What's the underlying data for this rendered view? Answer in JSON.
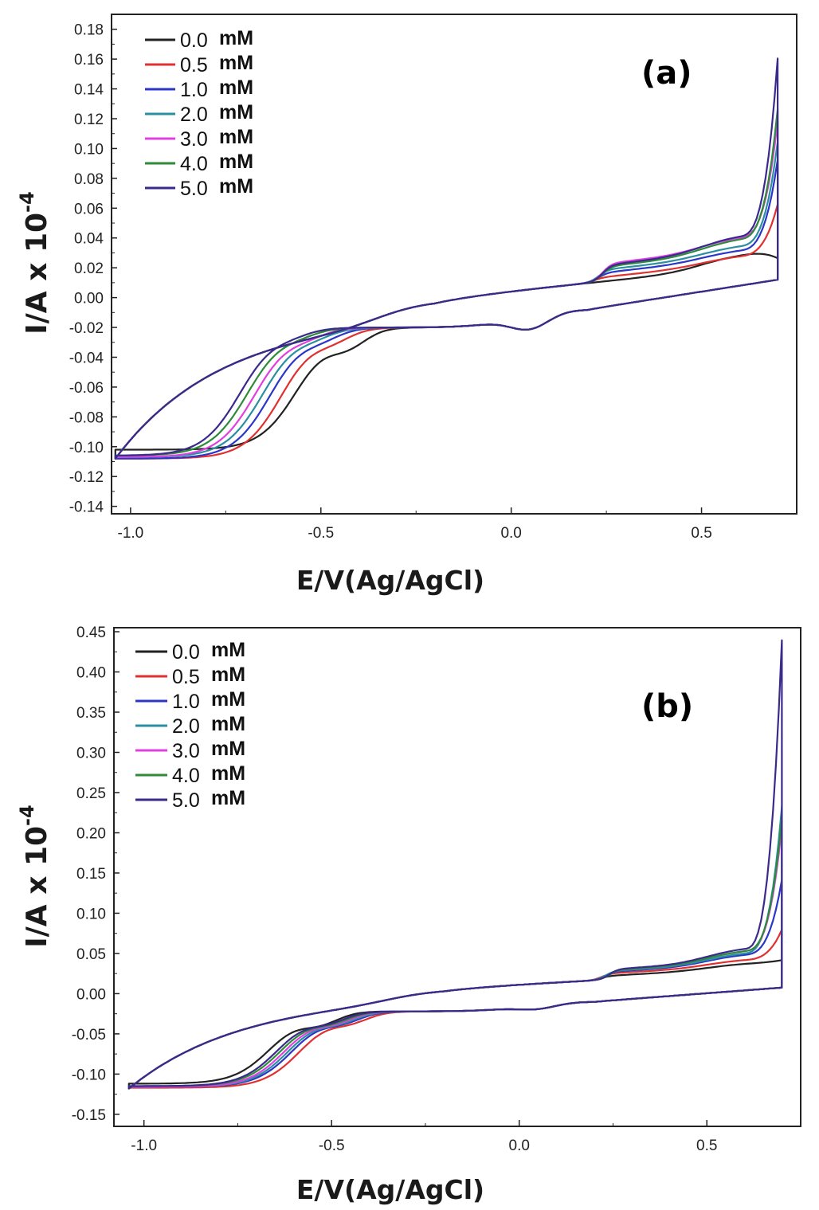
{
  "chart_data": [
    {
      "type": "line",
      "panel_label": "(a)",
      "xlabel": "E/V(Ag/AgCl)",
      "ylabel": "I/A x 10",
      "ylabel_exponent": "-4",
      "xlim": [
        -1.05,
        0.75
      ],
      "ylim": [
        -0.145,
        0.19
      ],
      "xticks": [
        -1.0,
        -0.5,
        0.0,
        0.5
      ],
      "xtick_labels": [
        "-1.0",
        "-0.5",
        "0.0",
        "0.5"
      ],
      "yticks": [
        0.18,
        0.16,
        0.14,
        0.12,
        0.1,
        0.08,
        0.06,
        0.04,
        0.02,
        0.0,
        -0.02,
        -0.04,
        -0.06,
        -0.08,
        -0.1,
        -0.12,
        -0.14
      ],
      "ytick_labels": [
        "0.18",
        "0.16",
        "0.14",
        "0.12",
        "0.10",
        "0.08",
        "0.06",
        "0.04",
        "0.02",
        "0.00",
        "-0.02",
        "-0.04",
        "-0.06",
        "-0.08",
        "-0.10",
        "-0.12",
        "-0.14"
      ],
      "legend_position": "top-left",
      "series": [
        {
          "name": "0.0",
          "unit": "mM",
          "color": "#222222",
          "params": {
            "redPeak": -0.43,
            "cath": -0.112,
            "anPeak": null,
            "anAmp": 0,
            "redAmp": 0.01,
            "spike": 0.035,
            "top": 0.04
          }
        },
        {
          "name": "0.5",
          "unit": "mM",
          "color": "#e03030",
          "params": {
            "redPeak": -0.47,
            "cath": -0.118,
            "anPeak": 0.25,
            "anAmp": 0.003,
            "redAmp": 0.006,
            "spike": 0.068,
            "top": 0.036
          }
        },
        {
          "name": "1.0",
          "unit": "mM",
          "color": "#2b35c8",
          "params": {
            "redPeak": -0.5,
            "cath": -0.118,
            "anPeak": 0.26,
            "anAmp": 0.006,
            "redAmp": 0.005,
            "spike": 0.095,
            "top": 0.037
          }
        },
        {
          "name": "2.0",
          "unit": "mM",
          "color": "#2a8fa0",
          "params": {
            "redPeak": -0.52,
            "cath": -0.117,
            "anPeak": 0.26,
            "anAmp": 0.008,
            "redAmp": 0.004,
            "spike": 0.105,
            "top": 0.038
          }
        },
        {
          "name": "3.0",
          "unit": "mM",
          "color": "#e040e0",
          "params": {
            "redPeak": -0.54,
            "cath": -0.117,
            "anPeak": 0.27,
            "anAmp": 0.012,
            "redAmp": 0.004,
            "spike": 0.115,
            "top": 0.04
          }
        },
        {
          "name": "4.0",
          "unit": "mM",
          "color": "#2e8b3a",
          "params": {
            "redPeak": -0.56,
            "cath": -0.116,
            "anPeak": 0.27,
            "anAmp": 0.01,
            "redAmp": 0.003,
            "spike": 0.125,
            "top": 0.041
          }
        },
        {
          "name": "5.0",
          "unit": "mM",
          "color": "#3a2a8c",
          "params": {
            "redPeak": -0.58,
            "cath": -0.116,
            "anPeak": 0.27,
            "anAmp": 0.011,
            "redAmp": 0.003,
            "spike": 0.158,
            "top": 0.042
          }
        }
      ]
    },
    {
      "type": "line",
      "panel_label": "(b)",
      "xlabel": "E/V(Ag/AgCl)",
      "ylabel": "I/A x 10",
      "ylabel_exponent": "-4",
      "xlim": [
        -1.08,
        0.75
      ],
      "ylim": [
        -0.165,
        0.455
      ],
      "xticks": [
        -1.0,
        -0.5,
        0.0,
        0.5
      ],
      "xtick_labels": [
        "-1.0",
        "-0.5",
        "0.0",
        "0.5"
      ],
      "yticks": [
        0.45,
        0.4,
        0.35,
        0.3,
        0.25,
        0.2,
        0.15,
        0.1,
        0.05,
        0.0,
        -0.05,
        -0.1,
        -0.15
      ],
      "ytick_labels": [
        "0.45",
        "0.40",
        "0.35",
        "0.30",
        "0.25",
        "0.20",
        "0.15",
        "0.10",
        "0.05",
        "0.00",
        "-0.05",
        "-0.10",
        "-0.15"
      ],
      "legend_position": "top-left",
      "series": [
        {
          "name": "0.0",
          "unit": "mM",
          "color": "#222222",
          "params": {
            "redPeak": -0.58,
            "cath": -0.12,
            "anPeak": 0.25,
            "anAmp": 0.005,
            "redAmp": 0.012,
            "spike": 0.04,
            "top": 0.038
          }
        },
        {
          "name": "0.5",
          "unit": "mM",
          "color": "#e03030",
          "params": {
            "redPeak": -0.5,
            "cath": -0.125,
            "anPeak": 0.25,
            "anAmp": 0.008,
            "redAmp": 0.01,
            "spike": 0.075,
            "top": 0.04
          }
        },
        {
          "name": "1.0",
          "unit": "mM",
          "color": "#2b35c8",
          "params": {
            "redPeak": -0.52,
            "cath": -0.124,
            "anPeak": 0.26,
            "anAmp": 0.01,
            "redAmp": 0.01,
            "spike": 0.135,
            "top": 0.045
          }
        },
        {
          "name": "2.0",
          "unit": "mM",
          "color": "#2a8fa0",
          "params": {
            "redPeak": -0.53,
            "cath": -0.124,
            "anPeak": 0.26,
            "anAmp": 0.011,
            "redAmp": 0.01,
            "spike": 0.225,
            "top": 0.046
          }
        },
        {
          "name": "3.0",
          "unit": "mM",
          "color": "#e040e0",
          "params": {
            "redPeak": -0.54,
            "cath": -0.124,
            "anPeak": 0.27,
            "anAmp": 0.012,
            "redAmp": 0.01,
            "spike": 0.2,
            "top": 0.048
          }
        },
        {
          "name": "4.0",
          "unit": "mM",
          "color": "#2e8b3a",
          "params": {
            "redPeak": -0.55,
            "cath": -0.123,
            "anPeak": 0.27,
            "anAmp": 0.012,
            "redAmp": 0.01,
            "spike": 0.21,
            "top": 0.048
          }
        },
        {
          "name": "5.0",
          "unit": "mM",
          "color": "#3a2a8c",
          "params": {
            "redPeak": -0.56,
            "cath": -0.123,
            "anPeak": 0.27,
            "anAmp": 0.013,
            "redAmp": 0.01,
            "spike": 0.43,
            "top": 0.05
          }
        }
      ]
    }
  ]
}
